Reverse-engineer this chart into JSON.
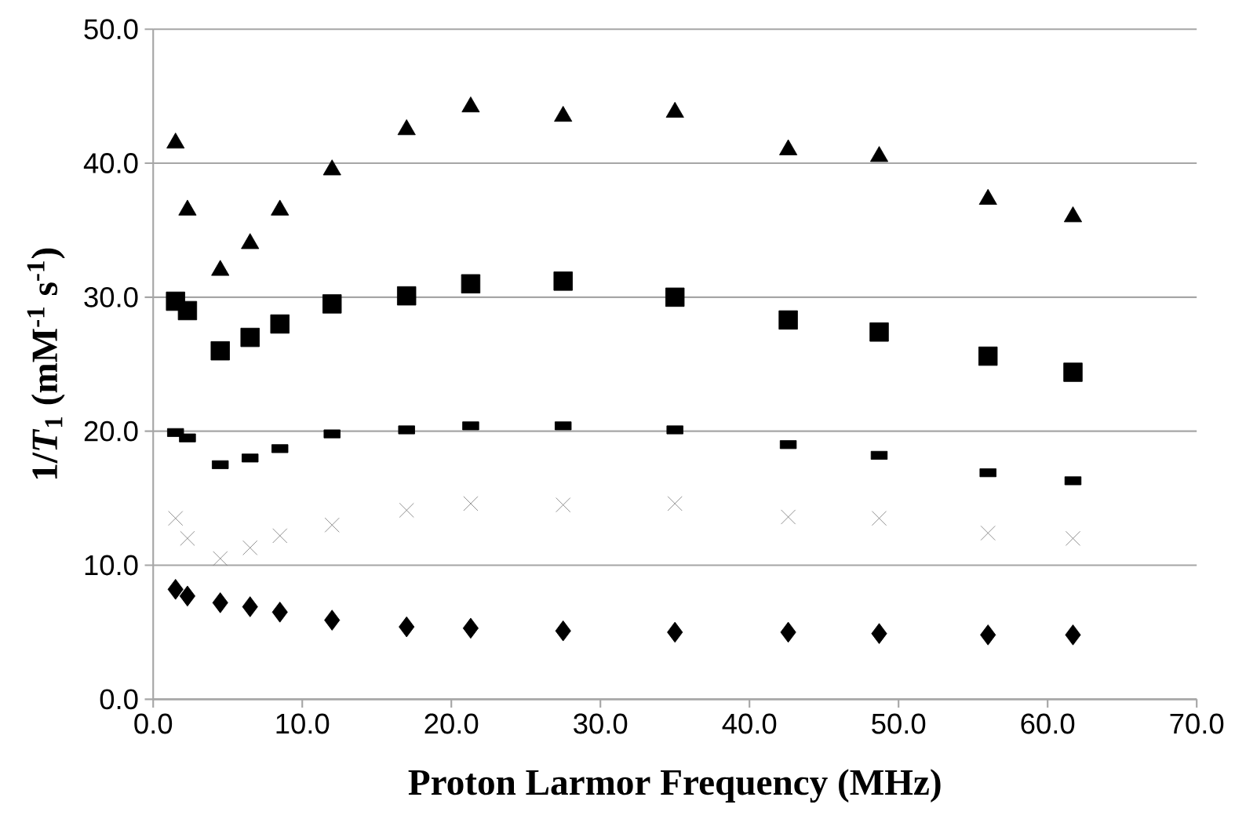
{
  "chart_data": {
    "type": "scatter",
    "xlabel": "Proton Larmor Frequency (MHz)",
    "ylabel": "1/*T*$_{1}$ (mM$^{-1}$ s$^{-1}$)",
    "x": [
      1.5,
      2.3,
      4.5,
      6.5,
      8.5,
      12,
      17,
      21.3,
      27.5,
      35,
      42.6,
      48.7,
      56,
      61.7
    ],
    "series": [
      {
        "color": "#000000",
        "marker": "triangle",
        "values": [
          41.5,
          36.5,
          32,
          34,
          36.5,
          39.5,
          42.5,
          44.2,
          43.5,
          43.8,
          41,
          40.5,
          37.3,
          36
        ]
      },
      {
        "color": "#000000",
        "marker": "square",
        "values": [
          29.7,
          29,
          26,
          27,
          28,
          29.5,
          30.1,
          31,
          31.2,
          30,
          28.3,
          27.4,
          25.6,
          24.4
        ]
      },
      {
        "color": "#000000",
        "marker": "square",
        "values": [
          19.9,
          19.5,
          17.5,
          18,
          18.7,
          19.8,
          20.1,
          20.4,
          20.4,
          20.1,
          19,
          18.2,
          16.9,
          16.3
        ]
      },
      {
        "color": "#808080",
        "marker": "cross",
        "values": [
          13.5,
          12,
          10.5,
          11.3,
          12.2,
          13,
          14.1,
          14.6,
          14.5,
          14.6,
          13.6,
          13.5,
          12.4,
          12
        ]
      },
      {
        "color": "#000000",
        "marker": "diamond",
        "values": [
          8.2,
          7.7,
          7.2,
          6.9,
          6.5,
          5.9,
          5.4,
          5.3,
          5.1,
          5.0,
          5.0,
          4.9,
          4.8,
          4.8
        ]
      }
    ],
    "xlim": [
      0,
      70
    ],
    "ylim": [
      0,
      50
    ],
    "xticks": [
      {
        "value": 0,
        "label": "0.0"
      },
      {
        "value": 10,
        "label": "10.0"
      },
      {
        "value": 20,
        "label": "20.0"
      },
      {
        "value": 30,
        "label": "30.0"
      },
      {
        "value": 40,
        "label": "40.0"
      },
      {
        "value": 50,
        "label": "50.0"
      },
      {
        "value": 60,
        "label": "60.0"
      },
      {
        "value": 70,
        "label": "70.0"
      }
    ],
    "yticks": [
      {
        "value": 0,
        "label": "0.0"
      },
      {
        "value": 10,
        "label": "10.0"
      },
      {
        "value": 20,
        "label": "20.0"
      },
      {
        "value": 30,
        "label": "30.0"
      },
      {
        "value": 40,
        "label": "40.0"
      },
      {
        "value": 50,
        "label": "50.0"
      }
    ],
    "grid": "y"
  }
}
